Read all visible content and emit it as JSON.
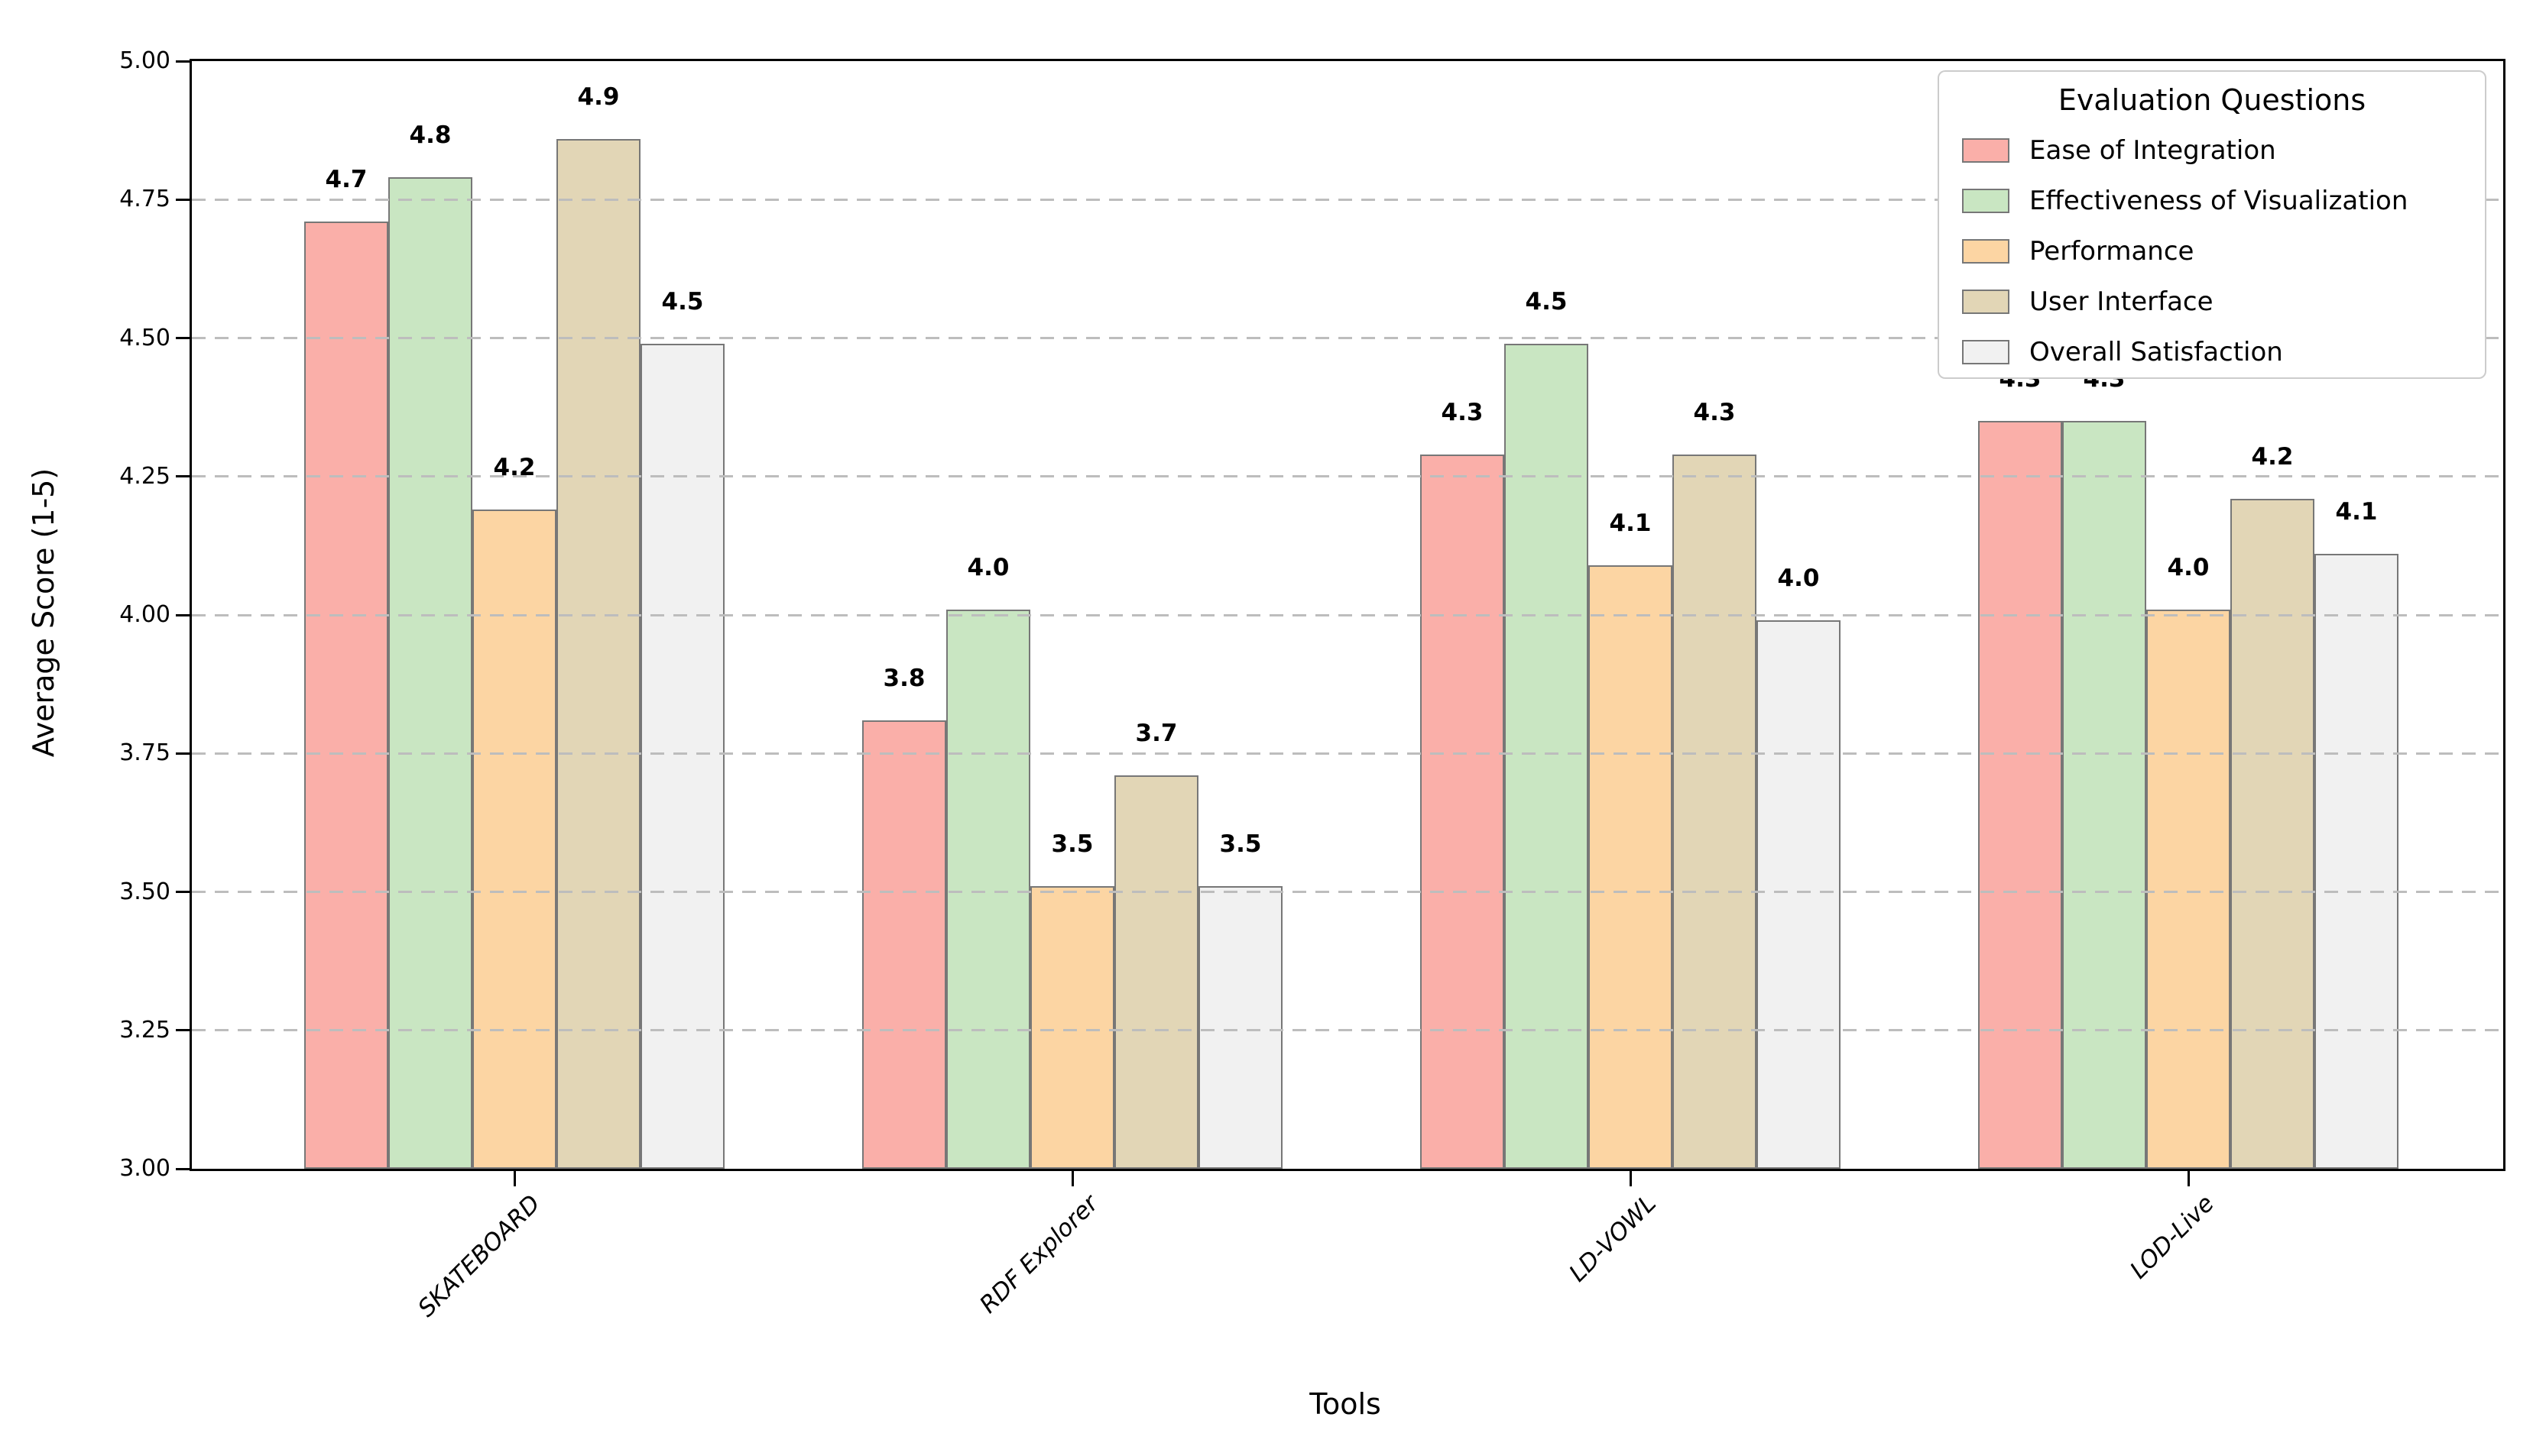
{
  "figure": {
    "background_color": "#ffffff"
  },
  "chart_data": {
    "type": "bar",
    "title": "",
    "xlabel": "Tools",
    "ylabel": "Average Score (1-5)",
    "ylim": [
      3.0,
      5.0
    ],
    "yticks": [
      {
        "value": 3.0,
        "label": "3.00"
      },
      {
        "value": 3.25,
        "label": "3.25"
      },
      {
        "value": 3.5,
        "label": "3.50"
      },
      {
        "value": 3.75,
        "label": "3.75"
      },
      {
        "value": 4.0,
        "label": "4.00"
      },
      {
        "value": 4.25,
        "label": "4.25"
      },
      {
        "value": 4.5,
        "label": "4.50"
      },
      {
        "value": 4.75,
        "label": "4.75"
      },
      {
        "value": 5.0,
        "label": "5.00"
      }
    ],
    "grid": {
      "axis": "y",
      "style": "dashed",
      "color": "#bdbdbd",
      "drawn_over_bars": true
    },
    "categories": [
      "SKATEBOARD",
      "RDF Explorer",
      "LD-VOWL",
      "LOD-Live"
    ],
    "series": [
      {
        "name": "Ease of Integration",
        "color": "#FAAFA9",
        "values": [
          4.7,
          3.8,
          4.3,
          4.3
        ],
        "value_labels": [
          "4.7",
          "3.8",
          "4.3",
          "4.3"
        ],
        "bar_heights": [
          4.71,
          3.81,
          4.29,
          4.35
        ]
      },
      {
        "name": "Effectiveness of Visualization",
        "color": "#C9E6C2",
        "values": [
          4.8,
          4.0,
          4.5,
          4.3
        ],
        "value_labels": [
          "4.8",
          "4.0",
          "4.5",
          "4.3"
        ],
        "bar_heights": [
          4.79,
          4.01,
          4.49,
          4.35
        ]
      },
      {
        "name": "Performance",
        "color": "#FCD5A3",
        "values": [
          4.2,
          3.5,
          4.1,
          4.0
        ],
        "value_labels": [
          "4.2",
          "3.5",
          "4.1",
          "4.0"
        ],
        "bar_heights": [
          4.19,
          3.51,
          4.09,
          4.01
        ]
      },
      {
        "name": "User Interface",
        "color": "#E2D6B6",
        "values": [
          4.9,
          3.7,
          4.3,
          4.2
        ],
        "value_labels": [
          "4.9",
          "3.7",
          "4.3",
          "4.2"
        ],
        "bar_heights": [
          4.86,
          3.71,
          4.29,
          4.21
        ]
      },
      {
        "name": "Overall Satisfaction",
        "color": "#F1F1F1",
        "values": [
          4.5,
          3.5,
          4.0,
          4.1
        ],
        "value_labels": [
          "4.5",
          "3.5",
          "4.0",
          "4.1"
        ],
        "bar_edge_note": "",
        "bar_heights": [
          4.49,
          3.51,
          3.99,
          4.11
        ]
      }
    ],
    "bar_edge_color": "#777777",
    "legend": {
      "title": "Evaluation Questions",
      "position": "upper right",
      "entries": [
        "Ease of Integration",
        "Effectiveness of Visualization",
        "Performance",
        "User Interface",
        "Overall Satisfaction"
      ]
    }
  }
}
